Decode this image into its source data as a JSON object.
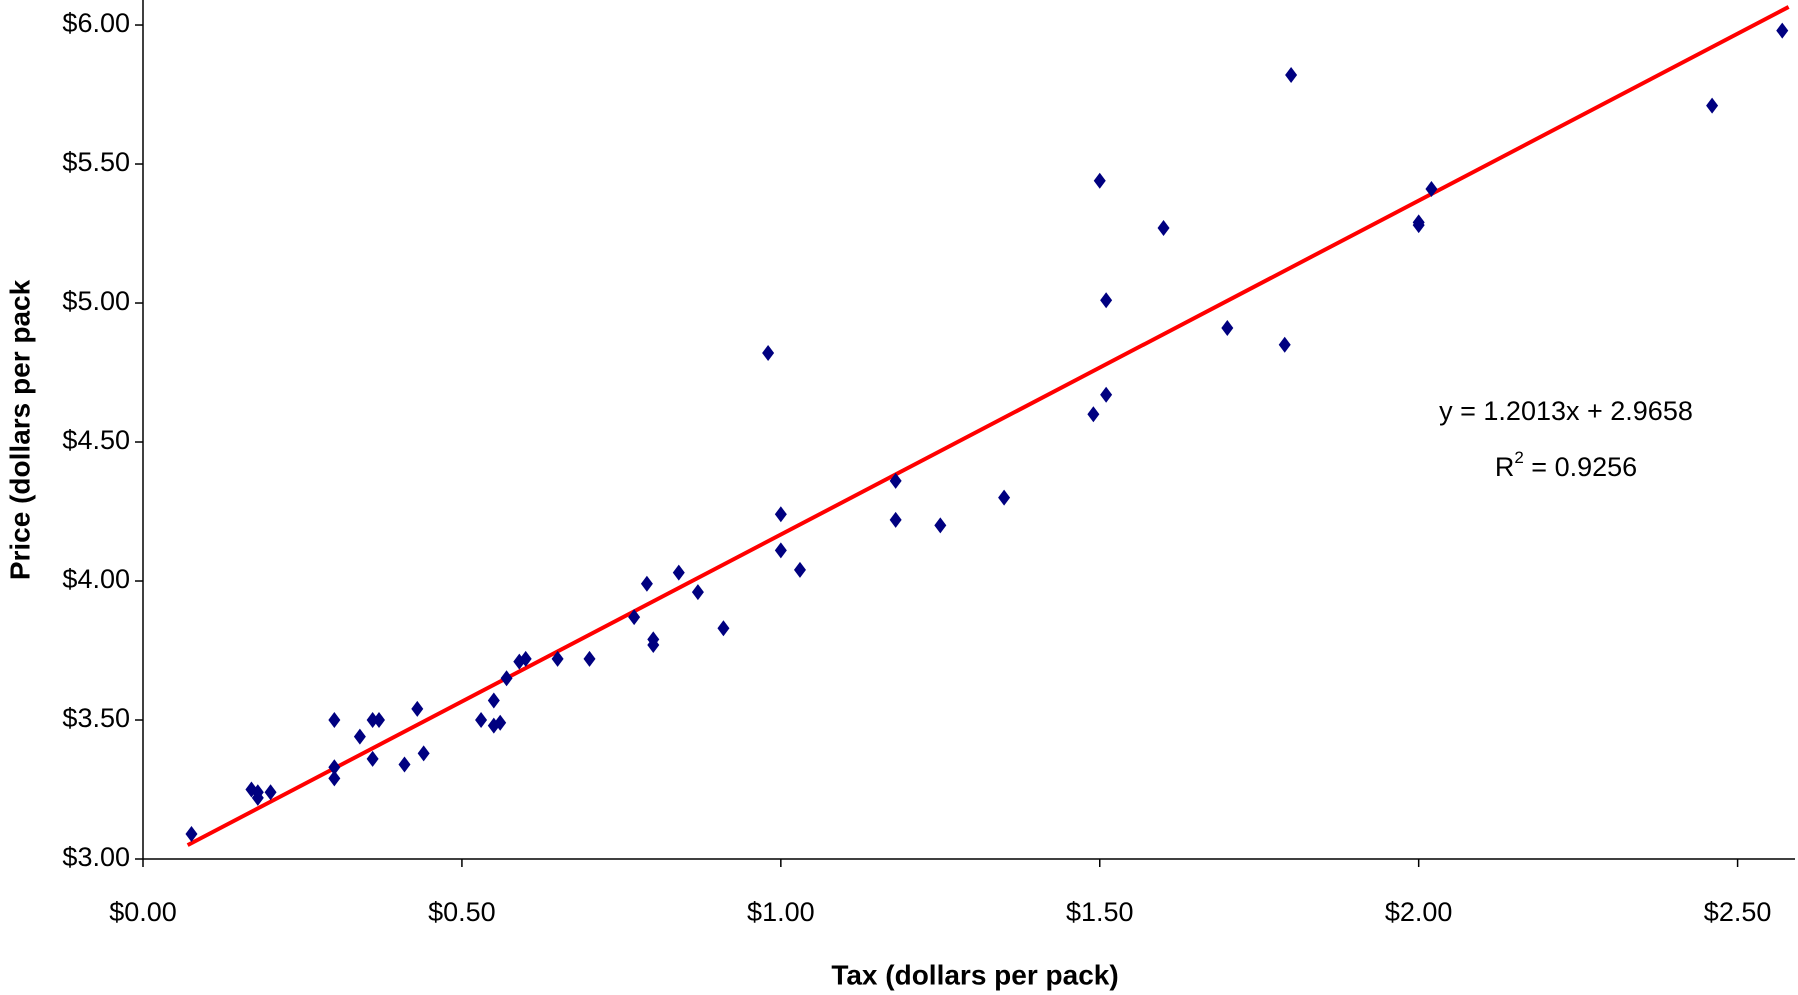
{
  "chart_data": {
    "type": "scatter",
    "xlabel": "Tax (dollars per pack)",
    "ylabel": "Price (dollars per pack",
    "xlim": [
      0,
      2.59
    ],
    "ylim": [
      3,
      6.09
    ],
    "xticks": [
      {
        "value": 0,
        "label": "$0.00"
      },
      {
        "value": 0.5,
        "label": "$0.50"
      },
      {
        "value": 1,
        "label": "$1.00"
      },
      {
        "value": 1.5,
        "label": "$1.50"
      },
      {
        "value": 2,
        "label": "$2.00"
      },
      {
        "value": 2.5,
        "label": "$2.50"
      }
    ],
    "yticks": [
      {
        "value": 3,
        "label": "$3.00"
      },
      {
        "value": 3.5,
        "label": "$3.50"
      },
      {
        "value": 4,
        "label": "$4.00"
      },
      {
        "value": 4.5,
        "label": "$4.50"
      },
      {
        "value": 5,
        "label": "$5.00"
      },
      {
        "value": 5.5,
        "label": "$5.50"
      },
      {
        "value": 6,
        "label": "$6.00"
      }
    ],
    "color": "#000080",
    "x": [
      0.076,
      0.17,
      0.18,
      0.18,
      0.2,
      0.3,
      0.3,
      0.3,
      0.34,
      0.36,
      0.36,
      0.37,
      0.41,
      0.43,
      0.44,
      0.53,
      0.55,
      0.55,
      0.56,
      0.57,
      0.59,
      0.6,
      0.65,
      0.7,
      0.77,
      0.79,
      0.8,
      0.8,
      0.84,
      0.87,
      0.91,
      0.98,
      1.0,
      1.0,
      1.03,
      1.18,
      1.18,
      1.25,
      1.35,
      1.49,
      1.5,
      1.51,
      1.51,
      1.6,
      1.7,
      1.79,
      1.8,
      2.0,
      2.0,
      2.02,
      2.46,
      2.57
    ],
    "values": [
      3.09,
      3.25,
      3.24,
      3.22,
      3.24,
      3.5,
      3.33,
      3.29,
      3.44,
      3.5,
      3.36,
      3.5,
      3.34,
      3.54,
      3.38,
      3.5,
      3.57,
      3.48,
      3.49,
      3.65,
      3.71,
      3.72,
      3.72,
      3.72,
      3.87,
      3.99,
      3.79,
      3.77,
      4.03,
      3.96,
      3.83,
      4.82,
      4.24,
      4.11,
      4.04,
      4.36,
      4.22,
      4.2,
      4.3,
      4.6,
      5.44,
      4.67,
      5.01,
      5.27,
      4.91,
      4.85,
      5.82,
      5.29,
      5.28,
      5.41,
      5.71,
      5.98
    ],
    "trendline": {
      "color": "#ff0000",
      "x": [
        0.07,
        2.58
      ],
      "values": [
        3.05,
        6.065
      ]
    },
    "equation": "y = 1.2013x + 2.9658",
    "r_squared": {
      "base": "R",
      "sup": "2",
      "rest": " = 0.9256"
    }
  }
}
